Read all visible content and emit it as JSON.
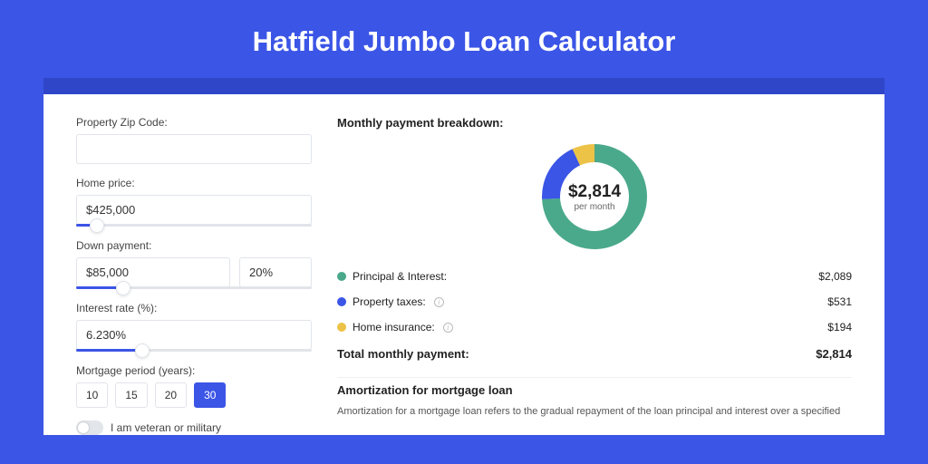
{
  "page": {
    "title": "Hatfield Jumbo Loan Calculator",
    "colors": {
      "page_bg": "#3b55e6",
      "shadow_strip": "#2f46c9",
      "card_bg": "#ffffff",
      "text": "#222222",
      "accent": "#3b55e6"
    }
  },
  "form": {
    "zip": {
      "label": "Property Zip Code:",
      "value": ""
    },
    "home_price": {
      "label": "Home price:",
      "value": "$425,000",
      "slider_pct": 9
    },
    "down_payment": {
      "label": "Down payment:",
      "amount": "$85,000",
      "percent": "20%",
      "slider_pct": 20
    },
    "interest_rate": {
      "label": "Interest rate (%):",
      "value": "6.230%",
      "slider_pct": 28
    },
    "mortgage_period": {
      "label": "Mortgage period (years):",
      "options": [
        "10",
        "15",
        "20",
        "30"
      ],
      "selected": "30"
    },
    "veteran": {
      "label": "I am veteran or military",
      "checked": false
    }
  },
  "breakdown": {
    "title": "Monthly payment breakdown:",
    "donut": {
      "center_amount": "$2,814",
      "center_sub": "per month",
      "segments": [
        {
          "name": "Principal & Interest",
          "color": "#4aa98a",
          "pct": 74.2
        },
        {
          "name": "Property taxes",
          "color": "#3b55e6",
          "pct": 18.9
        },
        {
          "name": "Home insurance",
          "color": "#ecc247",
          "pct": 6.9
        }
      ],
      "radius": 64,
      "thickness": 20,
      "bg": "#ffffff"
    },
    "items": [
      {
        "label": "Principal & Interest:",
        "amount": "$2,089",
        "color": "#4aa98a",
        "info": false
      },
      {
        "label": "Property taxes:",
        "amount": "$531",
        "color": "#3b55e6",
        "info": true
      },
      {
        "label": "Home insurance:",
        "amount": "$194",
        "color": "#ecc247",
        "info": true
      }
    ],
    "total": {
      "label": "Total monthly payment:",
      "amount": "$2,814"
    }
  },
  "amortization": {
    "title": "Amortization for mortgage loan",
    "text": "Amortization for a mortgage loan refers to the gradual repayment of the loan principal and interest over a specified"
  }
}
